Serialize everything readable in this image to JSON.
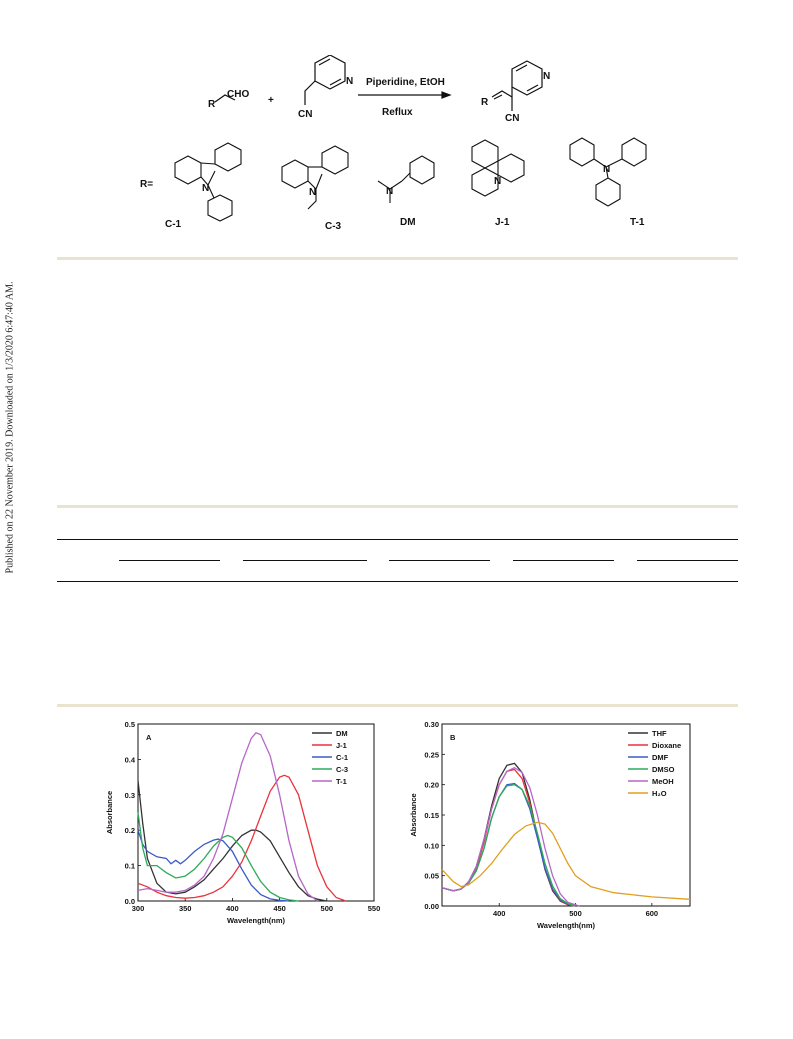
{
  "side_note": "Published on 22 November 2019. Downloaded on 1/3/2020 6:47:40 AM.",
  "scheme": {
    "reagent_aldehyde": "CHO",
    "r_label": "R",
    "plus": "+",
    "nitrile_label": "CN",
    "pyridine_n": "N",
    "conditions_top": "Piperidine, EtOH",
    "conditions_bottom": "Reflux",
    "r_equals": "R=",
    "substituents": [
      {
        "code": "C-1"
      },
      {
        "code": "C-3"
      },
      {
        "code": "DM"
      },
      {
        "code": "J-1"
      },
      {
        "code": "T-1"
      }
    ]
  },
  "chart_data": [
    {
      "type": "line",
      "panel_label": "A",
      "xlabel": "Wavelength(nm)",
      "ylabel": "Absorbance",
      "xlim": [
        300,
        550
      ],
      "ylim": [
        0.0,
        0.5
      ],
      "xticks": [
        "300",
        "350",
        "400",
        "450",
        "500",
        "550"
      ],
      "yticks": [
        "0.0",
        "0.1",
        "0.2",
        "0.3",
        "0.4",
        "0.5"
      ],
      "legend_position": "top-right",
      "series": [
        {
          "name": "DM",
          "color": "#333333",
          "x": [
            300,
            305,
            310,
            320,
            330,
            340,
            350,
            360,
            370,
            380,
            390,
            400,
            410,
            420,
            425,
            430,
            440,
            450,
            460,
            470,
            480,
            490,
            500
          ],
          "y": [
            0.34,
            0.22,
            0.12,
            0.05,
            0.025,
            0.02,
            0.025,
            0.04,
            0.06,
            0.09,
            0.12,
            0.155,
            0.185,
            0.2,
            0.2,
            0.195,
            0.17,
            0.125,
            0.08,
            0.04,
            0.015,
            0.005,
            0.0
          ]
        },
        {
          "name": "J-1",
          "color": "#e8343a",
          "x": [
            300,
            310,
            320,
            330,
            340,
            350,
            360,
            370,
            380,
            390,
            400,
            410,
            420,
            430,
            440,
            450,
            455,
            460,
            470,
            480,
            490,
            500,
            510,
            520
          ],
          "y": [
            0.05,
            0.04,
            0.025,
            0.015,
            0.01,
            0.008,
            0.01,
            0.015,
            0.025,
            0.04,
            0.07,
            0.11,
            0.17,
            0.24,
            0.31,
            0.35,
            0.355,
            0.35,
            0.3,
            0.2,
            0.1,
            0.04,
            0.01,
            0.0
          ]
        },
        {
          "name": "C-1",
          "color": "#3a5bc7",
          "x": [
            300,
            305,
            310,
            320,
            330,
            335,
            340,
            345,
            350,
            360,
            370,
            380,
            385,
            390,
            400,
            410,
            420,
            430,
            440,
            450,
            460
          ],
          "y": [
            0.2,
            0.16,
            0.14,
            0.125,
            0.12,
            0.105,
            0.115,
            0.105,
            0.115,
            0.14,
            0.16,
            0.172,
            0.175,
            0.17,
            0.14,
            0.09,
            0.045,
            0.018,
            0.006,
            0.002,
            0.0
          ]
        },
        {
          "name": "C-3",
          "color": "#2daa5a",
          "x": [
            300,
            305,
            310,
            320,
            330,
            340,
            350,
            360,
            370,
            380,
            390,
            395,
            400,
            410,
            420,
            430,
            440,
            450,
            460,
            470
          ],
          "y": [
            0.25,
            0.15,
            0.1,
            0.1,
            0.08,
            0.065,
            0.07,
            0.09,
            0.12,
            0.155,
            0.18,
            0.185,
            0.18,
            0.15,
            0.1,
            0.055,
            0.025,
            0.01,
            0.003,
            0.0
          ]
        },
        {
          "name": "T-1",
          "color": "#b666c8",
          "x": [
            300,
            310,
            320,
            330,
            340,
            350,
            360,
            370,
            380,
            390,
            400,
            410,
            420,
            425,
            430,
            440,
            450,
            460,
            470,
            480,
            490
          ],
          "y": [
            0.03,
            0.035,
            0.03,
            0.025,
            0.025,
            0.03,
            0.045,
            0.07,
            0.12,
            0.19,
            0.29,
            0.39,
            0.46,
            0.475,
            0.47,
            0.41,
            0.3,
            0.17,
            0.07,
            0.02,
            0.0
          ]
        }
      ]
    },
    {
      "type": "line",
      "panel_label": "B",
      "xlabel": "Wavelength(nm)",
      "ylabel": "Absorbance",
      "xlim": [
        325,
        650
      ],
      "ylim": [
        0.0,
        0.3
      ],
      "xticks": [
        "400",
        "500",
        "600"
      ],
      "yticks": [
        "0.00",
        "0.05",
        "0.10",
        "0.15",
        "0.20",
        "0.25",
        "0.30"
      ],
      "legend_position": "top-right",
      "series": [
        {
          "name": "THF",
          "color": "#333333",
          "x": [
            325,
            340,
            350,
            360,
            370,
            380,
            390,
            400,
            410,
            420,
            430,
            440,
            450,
            460,
            470,
            480,
            490,
            500
          ],
          "y": [
            0.03,
            0.025,
            0.028,
            0.04,
            0.065,
            0.11,
            0.165,
            0.21,
            0.232,
            0.235,
            0.22,
            0.175,
            0.115,
            0.06,
            0.025,
            0.008,
            0.002,
            0.0
          ]
        },
        {
          "name": "Dioxane",
          "color": "#e8343a",
          "x": [
            325,
            340,
            350,
            360,
            370,
            380,
            390,
            400,
            410,
            420,
            430,
            440,
            450,
            460,
            470,
            480,
            490,
            500
          ],
          "y": [
            0.03,
            0.025,
            0.028,
            0.04,
            0.062,
            0.105,
            0.16,
            0.2,
            0.222,
            0.225,
            0.21,
            0.17,
            0.115,
            0.062,
            0.027,
            0.009,
            0.002,
            0.0
          ]
        },
        {
          "name": "DMF",
          "color": "#3a5bc7",
          "x": [
            325,
            340,
            350,
            360,
            370,
            380,
            390,
            400,
            410,
            420,
            430,
            440,
            450,
            460,
            470,
            480,
            490,
            500
          ],
          "y": [
            0.03,
            0.025,
            0.028,
            0.038,
            0.058,
            0.095,
            0.145,
            0.18,
            0.2,
            0.202,
            0.192,
            0.16,
            0.112,
            0.062,
            0.028,
            0.01,
            0.003,
            0.0
          ]
        },
        {
          "name": "DMSO",
          "color": "#2daa5a",
          "x": [
            325,
            340,
            350,
            360,
            370,
            380,
            390,
            400,
            410,
            420,
            430,
            440,
            450,
            460,
            470,
            480,
            490,
            500
          ],
          "y": [
            0.03,
            0.025,
            0.028,
            0.038,
            0.058,
            0.095,
            0.145,
            0.18,
            0.198,
            0.2,
            0.192,
            0.165,
            0.12,
            0.07,
            0.033,
            0.012,
            0.004,
            0.0
          ]
        },
        {
          "name": "MeOH",
          "color": "#b666c8",
          "x": [
            325,
            340,
            350,
            360,
            370,
            380,
            390,
            400,
            410,
            420,
            430,
            440,
            450,
            460,
            470,
            480,
            490,
            505
          ],
          "y": [
            0.03,
            0.025,
            0.028,
            0.04,
            0.065,
            0.11,
            0.16,
            0.2,
            0.222,
            0.228,
            0.22,
            0.195,
            0.15,
            0.095,
            0.05,
            0.02,
            0.006,
            0.0
          ]
        },
        {
          "name": "H₂O",
          "color": "#e0a020",
          "x": [
            325,
            340,
            350,
            360,
            375,
            390,
            405,
            420,
            435,
            450,
            460,
            470,
            480,
            490,
            500,
            520,
            550,
            600,
            650
          ],
          "y": [
            0.06,
            0.04,
            0.032,
            0.035,
            0.05,
            0.07,
            0.095,
            0.118,
            0.132,
            0.138,
            0.135,
            0.12,
            0.095,
            0.07,
            0.05,
            0.032,
            0.022,
            0.015,
            0.011
          ]
        }
      ]
    }
  ]
}
